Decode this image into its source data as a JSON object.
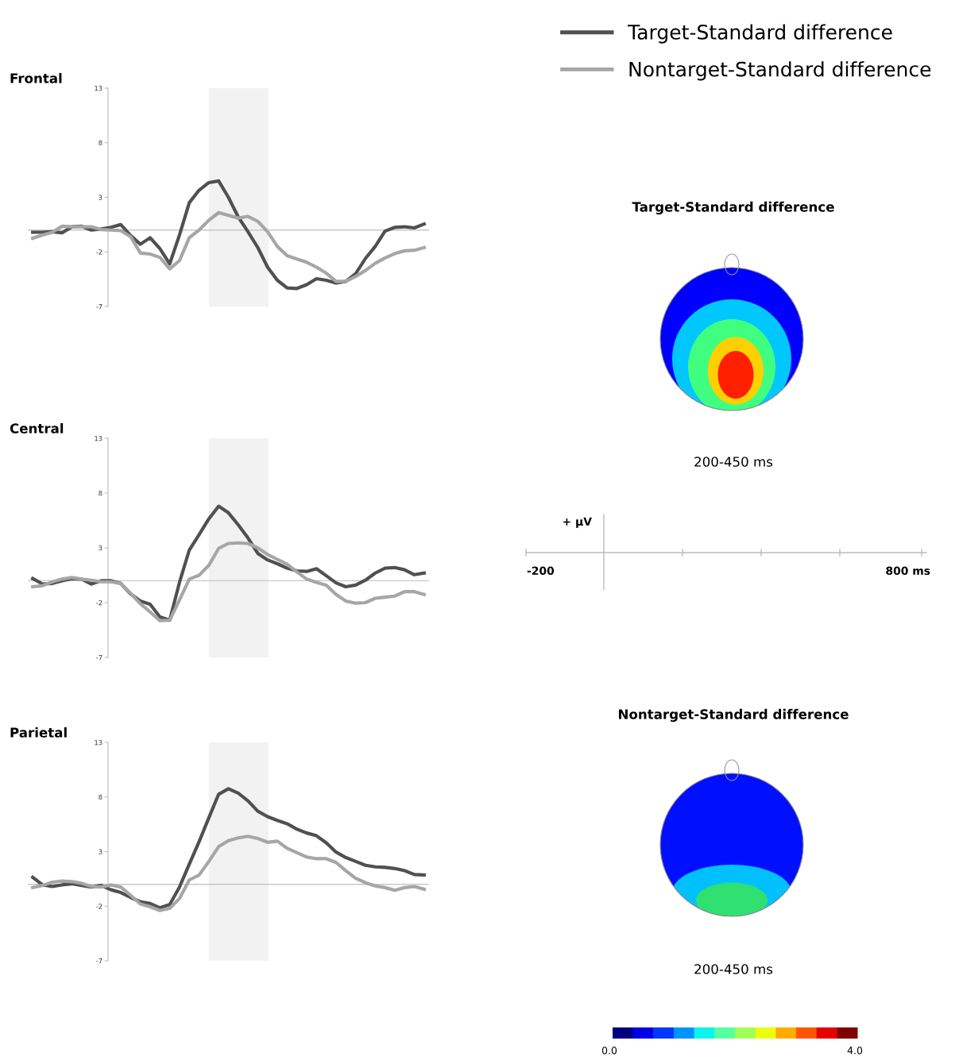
{
  "chart_data": [
    {
      "type": "line",
      "title": "Frontal",
      "categories": [
        null,
        null,
        null,
        null,
        null,
        null,
        null,
        null,
        null,
        null,
        null,
        null,
        null,
        null,
        null,
        null,
        null,
        null,
        null,
        null,
        null,
        null,
        null,
        null,
        null,
        null,
        null,
        null,
        null,
        null,
        null,
        null,
        null,
        null,
        null,
        null,
        null,
        null,
        null,
        null,
        null
      ],
      "ylim": [
        -7,
        13
      ],
      "yticks": [
        13,
        8,
        3,
        -2,
        -7
      ],
      "tick_labels": "y",
      "legend": "top right",
      "line_style": "solid",
      "ref_lines": [
        {
          "axis": "y",
          "value": 0,
          "color": "#c8c8c8"
        }
      ],
      "series": [
        {
          "name": "Target-Standard difference",
          "color": "#505050",
          "values": [
            -0.2,
            -0.2,
            -0.15,
            -0.25,
            0.3,
            0.35,
            0.0,
            0.1,
            0.25,
            0.5,
            -0.5,
            -1.3,
            -0.7,
            -1.7,
            -3.1,
            -0.45,
            2.5,
            3.65,
            4.35,
            4.5,
            3.0,
            1.2,
            -0.15,
            -1.6,
            -3.4,
            -4.6,
            -5.3,
            -5.35,
            -5.0,
            -4.45,
            -4.6,
            -4.85,
            -4.7,
            -4.0,
            -2.6,
            -1.5,
            -0.1,
            0.25,
            0.3,
            0.2,
            0.55
          ]
        },
        {
          "name": "Nontarget-Standard difference",
          "color": "#a6a6a6",
          "values": [
            -0.75,
            -0.45,
            -0.2,
            0.35,
            0.3,
            0.3,
            0.3,
            0.05,
            0.0,
            -0.05,
            -0.6,
            -2.1,
            -2.2,
            -2.5,
            -3.55,
            -2.8,
            -0.7,
            0.0,
            0.9,
            1.6,
            1.35,
            1.1,
            1.25,
            0.8,
            -0.15,
            -1.5,
            -2.35,
            -2.65,
            -2.95,
            -3.4,
            -3.95,
            -4.7,
            -4.7,
            -4.25,
            -3.7,
            -3.05,
            -2.55,
            -2.15,
            -1.9,
            -1.85,
            -1.6
          ]
        }
      ]
    },
    {
      "type": "line",
      "title": "Central",
      "categories": [
        null,
        null,
        null,
        null,
        null,
        null,
        null,
        null,
        null,
        null,
        null,
        null,
        null,
        null,
        null,
        null,
        null,
        null,
        null,
        null,
        null,
        null,
        null,
        null,
        null,
        null,
        null,
        null,
        null,
        null,
        null,
        null,
        null,
        null,
        null,
        null,
        null,
        null,
        null,
        null,
        null
      ],
      "ylim": [
        -7,
        13
      ],
      "yticks": [
        13,
        8,
        3,
        -2,
        -7
      ],
      "tick_labels": "y",
      "line_style": "solid",
      "ref_lines": [
        {
          "axis": "y",
          "value": 0,
          "color": "#c8c8c8"
        }
      ],
      "series": [
        {
          "color": "#505050",
          "values": [
            0.2,
            -0.3,
            -0.25,
            0.0,
            0.2,
            0.15,
            -0.3,
            0.0,
            0.0,
            -0.25,
            -1.2,
            -1.85,
            -2.15,
            -3.3,
            -3.6,
            -0.15,
            2.8,
            4.2,
            5.65,
            6.8,
            6.2,
            5.1,
            3.9,
            2.5,
            1.9,
            1.55,
            1.15,
            0.9,
            0.85,
            1.1,
            0.45,
            -0.2,
            -0.55,
            -0.4,
            0.05,
            0.7,
            1.15,
            1.2,
            1.0,
            0.55,
            0.7
          ]
        },
        {
          "color": "#a6a6a6",
          "values": [
            -0.55,
            -0.45,
            -0.1,
            0.15,
            0.3,
            0.15,
            0.05,
            -0.1,
            -0.1,
            -0.25,
            -1.15,
            -2.1,
            -2.85,
            -3.65,
            -3.6,
            -1.75,
            0.15,
            0.5,
            1.4,
            2.95,
            3.4,
            3.45,
            3.4,
            3.0,
            2.4,
            1.95,
            1.5,
            0.8,
            0.15,
            -0.15,
            -0.4,
            -1.25,
            -1.85,
            -2.05,
            -2.0,
            -1.6,
            -1.5,
            -1.4,
            -1.0,
            -1.0,
            -1.25
          ]
        }
      ]
    },
    {
      "type": "line",
      "title": "Parietal",
      "categories": [
        null,
        null,
        null,
        null,
        null,
        null,
        null,
        null,
        null,
        null,
        null,
        null,
        null,
        null,
        null,
        null,
        null,
        null,
        null,
        null,
        null,
        null,
        null,
        null,
        null,
        null,
        null,
        null,
        null,
        null,
        null,
        null,
        null,
        null,
        null,
        null,
        null,
        null,
        null,
        null,
        null
      ],
      "ylim": [
        -7,
        13
      ],
      "yticks": [
        13,
        8,
        3,
        -2,
        -7
      ],
      "tick_labels": "y",
      "line_style": "solid",
      "ref_lines": [
        {
          "axis": "y",
          "value": 0,
          "color": "#c8c8c8"
        }
      ],
      "series": [
        {
          "color": "#505050",
          "values": [
            0.65,
            -0.05,
            -0.2,
            -0.05,
            0.05,
            -0.1,
            -0.25,
            -0.1,
            -0.5,
            -0.75,
            -1.2,
            -1.6,
            -1.75,
            -2.15,
            -1.85,
            -0.25,
            1.85,
            3.9,
            6.1,
            8.25,
            8.75,
            8.35,
            7.65,
            6.7,
            6.2,
            5.85,
            5.55,
            5.05,
            4.7,
            4.45,
            3.8,
            2.95,
            2.45,
            2.1,
            1.75,
            1.6,
            1.55,
            1.45,
            1.25,
            0.9,
            0.85
          ]
        },
        {
          "color": "#a6a6a6",
          "values": [
            -0.3,
            -0.1,
            0.2,
            0.3,
            0.25,
            0.1,
            -0.2,
            -0.25,
            -0.05,
            -0.25,
            -1.0,
            -1.8,
            -2.05,
            -2.4,
            -2.2,
            -1.3,
            0.4,
            0.85,
            2.1,
            3.45,
            4.0,
            4.25,
            4.4,
            4.2,
            3.85,
            3.95,
            3.3,
            2.9,
            2.5,
            2.35,
            2.35,
            2.0,
            1.25,
            0.55,
            0.15,
            -0.15,
            -0.3,
            -0.55,
            -0.3,
            -0.2,
            -0.45
          ]
        }
      ]
    },
    {
      "type": "other",
      "annotations": [
        "Target-Standard difference",
        "200-450 ms",
        "+ µV",
        "-200",
        "800 ms",
        "Nontarget-Standard difference",
        "200-450 ms",
        "0.0",
        "4.0"
      ]
    }
  ]
}
